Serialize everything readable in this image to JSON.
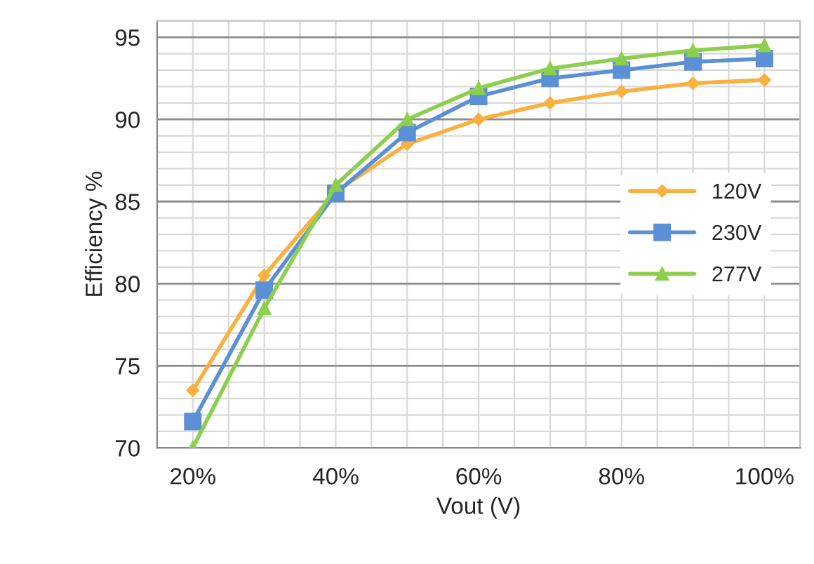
{
  "chart_data": {
    "type": "line",
    "xlabel": "Vout (V)",
    "ylabel": "Efficiency %",
    "categories": [
      "20%",
      null,
      "40%",
      null,
      "60%",
      null,
      "80%",
      null,
      "100%"
    ],
    "series": [
      {
        "name": "120V",
        "color": "#f9b03f",
        "marker": "diamond",
        "values": [
          73.5,
          80.5,
          85.6,
          88.5,
          90.0,
          91.0,
          91.7,
          92.2,
          92.4
        ]
      },
      {
        "name": "230V",
        "color": "#5b8fd6",
        "marker": "square",
        "values": [
          71.6,
          79.6,
          85.5,
          89.2,
          91.4,
          92.5,
          93.0,
          93.5,
          93.7
        ]
      },
      {
        "name": "277V",
        "color": "#8ccf4d",
        "marker": "triangle",
        "values": [
          70.0,
          78.5,
          86.0,
          90.0,
          91.9,
          93.1,
          93.7,
          94.2,
          94.5
        ]
      }
    ],
    "ylim": [
      70,
      96
    ],
    "yticks": [
      70,
      75,
      80,
      85,
      90,
      95
    ],
    "grid": true,
    "legend": "right"
  }
}
